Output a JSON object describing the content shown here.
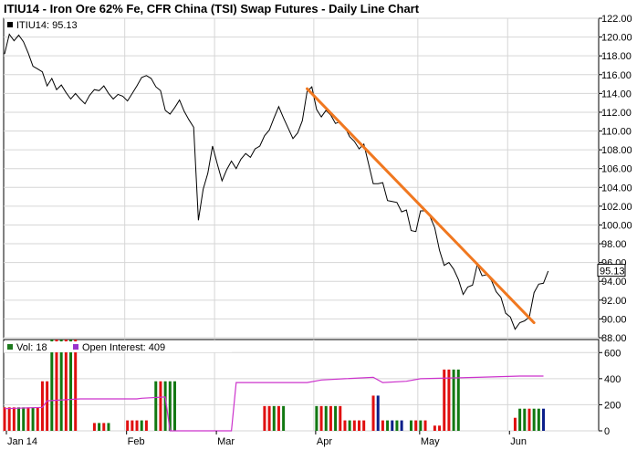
{
  "title": "ITIU14 - Iron Ore 62% Fe, CFR China (TSI) Swap Futures - Daily Line Chart",
  "chart_data": [
    {
      "type": "line",
      "legend": {
        "label": "ITIU14: 95.13",
        "swatch_color": "#000000"
      },
      "last_value": 95.13,
      "last_value_label": "95.13",
      "y_ticks": [
        88,
        90,
        92,
        94,
        96,
        98,
        100,
        102,
        104,
        106,
        108,
        110,
        112,
        114,
        116,
        118,
        120,
        122
      ],
      "y_tick_labels": [
        "88.00",
        "90.00",
        "92.00",
        "94.00",
        "96.00",
        "98.00",
        "100.00",
        "102.00",
        "104.00",
        "106.00",
        "108.00",
        "110.00",
        "112.00",
        "114.00",
        "116.00",
        "118.00",
        "120.00",
        "122.00"
      ],
      "ylim": [
        88,
        122
      ],
      "x_labels": [
        "Jan 14",
        "Feb",
        "Mar",
        "Apr",
        "May",
        "Jun"
      ],
      "grid": true,
      "series": [
        {
          "values": [
            118.2,
            120.3,
            119.6,
            120.2,
            119.5,
            118.3,
            116.9,
            116.6,
            116.3,
            114.8,
            115.6,
            114.4,
            114.9,
            114.1,
            113.4,
            114.0,
            113.4,
            112.9,
            113.8,
            114.4,
            114.3,
            114.8,
            114.0,
            113.4,
            113.9,
            113.7,
            113.2,
            114.0,
            114.8,
            115.7,
            115.9,
            115.6,
            114.7,
            114.3,
            112.2,
            111.8,
            112.5,
            113.3,
            112.1,
            111.2,
            110.4,
            100.5,
            103.8,
            105.5,
            108.4,
            106.5,
            104.7,
            105.9,
            106.8,
            106.0,
            107.0,
            107.6,
            107.2,
            108.1,
            108.4,
            109.5,
            110.1,
            111.4,
            112.6,
            111.4,
            110.3,
            109.2,
            109.8,
            111.1,
            114.2,
            114.7,
            112.3,
            111.5,
            112.2,
            111.7,
            110.8,
            111.0,
            110.4,
            109.4,
            108.9,
            108.1,
            108.6,
            106.5,
            104.4,
            104.4,
            104.5,
            102.6,
            102.5,
            102.4,
            101.4,
            101.6,
            99.4,
            99.3,
            101.5,
            101.5,
            100.9,
            99.7,
            97.3,
            95.7,
            96.0,
            95.3,
            94.2,
            92.6,
            93.4,
            93.6,
            95.8,
            94.6,
            94.7,
            94.1,
            92.9,
            92.3,
            90.6,
            90.2,
            88.9,
            89.6,
            89.8,
            90.2,
            92.8,
            93.7,
            93.8,
            95.1
          ]
        }
      ],
      "trendline": {
        "start_index": 64,
        "start_value": 114.5,
        "end_index": 112,
        "end_value": 89.6,
        "color": "#f07820"
      }
    },
    {
      "type": "bar",
      "legend": [
        {
          "label": "Vol: 18",
          "swatch_color": "#1e7a1e"
        },
        {
          "label": "Open Interest: 409",
          "swatch_color": "#9933cc"
        }
      ],
      "y_ticks": [
        0,
        200,
        400,
        600
      ],
      "y_tick_labels": [
        "0",
        "200",
        "400",
        "600"
      ],
      "ylim": [
        0,
        700
      ],
      "volume_series": [
        {
          "i": 0,
          "v": 180,
          "c": "red"
        },
        {
          "i": 1,
          "v": 180,
          "c": "red"
        },
        {
          "i": 2,
          "v": 180,
          "c": "red"
        },
        {
          "i": 3,
          "v": 180,
          "c": "green"
        },
        {
          "i": 4,
          "v": 180,
          "c": "green"
        },
        {
          "i": 5,
          "v": 180,
          "c": "red"
        },
        {
          "i": 6,
          "v": 180,
          "c": "green"
        },
        {
          "i": 7,
          "v": 180,
          "c": "red"
        },
        {
          "i": 8,
          "v": 380,
          "c": "red"
        },
        {
          "i": 9,
          "v": 380,
          "c": "red"
        },
        {
          "i": 10,
          "v": 700,
          "c": "green"
        },
        {
          "i": 11,
          "v": 700,
          "c": "red"
        },
        {
          "i": 12,
          "v": 700,
          "c": "green"
        },
        {
          "i": 13,
          "v": 700,
          "c": "red"
        },
        {
          "i": 14,
          "v": 700,
          "c": "green"
        },
        {
          "i": 15,
          "v": 700,
          "c": "red"
        },
        {
          "i": 19,
          "v": 60,
          "c": "red"
        },
        {
          "i": 20,
          "v": 60,
          "c": "green"
        },
        {
          "i": 21,
          "v": 60,
          "c": "red"
        },
        {
          "i": 22,
          "v": 60,
          "c": "green"
        },
        {
          "i": 26,
          "v": 80,
          "c": "red"
        },
        {
          "i": 27,
          "v": 80,
          "c": "red"
        },
        {
          "i": 28,
          "v": 80,
          "c": "red"
        },
        {
          "i": 29,
          "v": 80,
          "c": "green"
        },
        {
          "i": 30,
          "v": 80,
          "c": "red"
        },
        {
          "i": 32,
          "v": 380,
          "c": "green"
        },
        {
          "i": 33,
          "v": 380,
          "c": "red"
        },
        {
          "i": 34,
          "v": 380,
          "c": "green"
        },
        {
          "i": 35,
          "v": 380,
          "c": "green"
        },
        {
          "i": 36,
          "v": 380,
          "c": "green"
        },
        {
          "i": 55,
          "v": 190,
          "c": "red"
        },
        {
          "i": 56,
          "v": 190,
          "c": "red"
        },
        {
          "i": 57,
          "v": 190,
          "c": "green"
        },
        {
          "i": 58,
          "v": 190,
          "c": "red"
        },
        {
          "i": 59,
          "v": 190,
          "c": "green"
        },
        {
          "i": 66,
          "v": 190,
          "c": "green"
        },
        {
          "i": 67,
          "v": 190,
          "c": "red"
        },
        {
          "i": 68,
          "v": 190,
          "c": "green"
        },
        {
          "i": 69,
          "v": 190,
          "c": "red"
        },
        {
          "i": 70,
          "v": 190,
          "c": "green"
        },
        {
          "i": 71,
          "v": 190,
          "c": "red"
        },
        {
          "i": 72,
          "v": 80,
          "c": "red"
        },
        {
          "i": 73,
          "v": 80,
          "c": "green"
        },
        {
          "i": 74,
          "v": 80,
          "c": "red"
        },
        {
          "i": 75,
          "v": 80,
          "c": "red"
        },
        {
          "i": 76,
          "v": 80,
          "c": "red"
        },
        {
          "i": 78,
          "v": 270,
          "c": "red"
        },
        {
          "i": 79,
          "v": 270,
          "c": "navy"
        },
        {
          "i": 80,
          "v": 80,
          "c": "red"
        },
        {
          "i": 81,
          "v": 80,
          "c": "green"
        },
        {
          "i": 82,
          "v": 80,
          "c": "navy"
        },
        {
          "i": 83,
          "v": 80,
          "c": "green"
        },
        {
          "i": 84,
          "v": 80,
          "c": "navy"
        },
        {
          "i": 86,
          "v": 80,
          "c": "green"
        },
        {
          "i": 87,
          "v": 80,
          "c": "red"
        },
        {
          "i": 88,
          "v": 80,
          "c": "green"
        },
        {
          "i": 89,
          "v": 80,
          "c": "red"
        },
        {
          "i": 91,
          "v": 40,
          "c": "red"
        },
        {
          "i": 92,
          "v": 40,
          "c": "red"
        },
        {
          "i": 93,
          "v": 470,
          "c": "red"
        },
        {
          "i": 94,
          "v": 470,
          "c": "red"
        },
        {
          "i": 95,
          "v": 470,
          "c": "green"
        },
        {
          "i": 96,
          "v": 470,
          "c": "green"
        },
        {
          "i": 108,
          "v": 100,
          "c": "red"
        },
        {
          "i": 109,
          "v": 170,
          "c": "green"
        },
        {
          "i": 110,
          "v": 170,
          "c": "green"
        },
        {
          "i": 111,
          "v": 170,
          "c": "red"
        },
        {
          "i": 112,
          "v": 170,
          "c": "green"
        },
        {
          "i": 113,
          "v": 170,
          "c": "green"
        },
        {
          "i": 114,
          "v": 170,
          "c": "navy"
        }
      ],
      "open_interest": [
        {
          "i": 0,
          "v": 170
        },
        {
          "i": 8,
          "v": 180
        },
        {
          "i": 9,
          "v": 230
        },
        {
          "i": 16,
          "v": 245
        },
        {
          "i": 28,
          "v": 245
        },
        {
          "i": 29,
          "v": 250
        },
        {
          "i": 34,
          "v": 260
        },
        {
          "i": 35,
          "v": 0
        },
        {
          "i": 48,
          "v": 0
        },
        {
          "i": 49,
          "v": 370
        },
        {
          "i": 64,
          "v": 370
        },
        {
          "i": 67,
          "v": 390
        },
        {
          "i": 72,
          "v": 400
        },
        {
          "i": 78,
          "v": 410
        },
        {
          "i": 80,
          "v": 370
        },
        {
          "i": 85,
          "v": 380
        },
        {
          "i": 88,
          "v": 400
        },
        {
          "i": 100,
          "v": 410
        },
        {
          "i": 109,
          "v": 420
        },
        {
          "i": 114,
          "v": 420
        }
      ]
    }
  ]
}
